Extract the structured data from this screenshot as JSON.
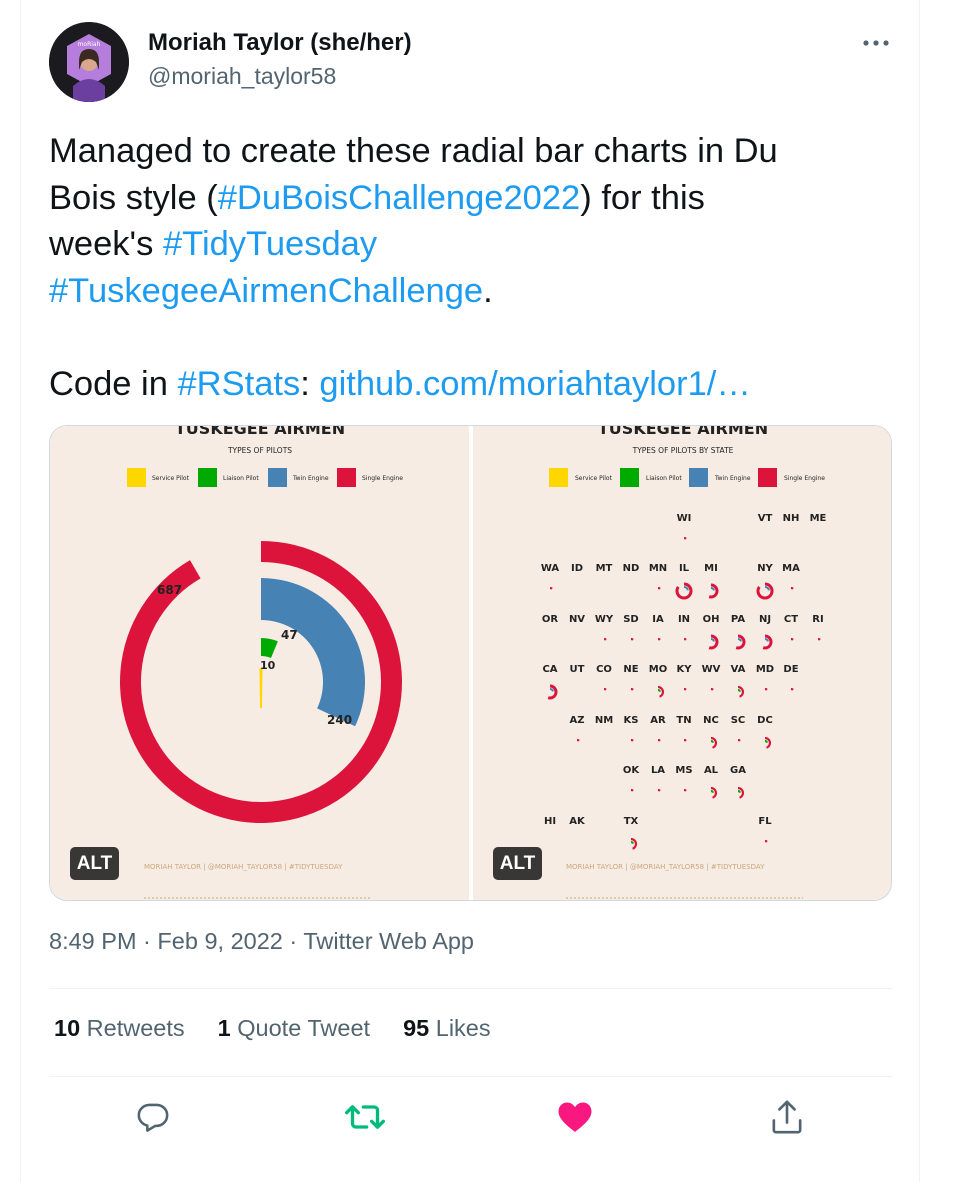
{
  "author": {
    "name": "Moriah Taylor (she/her)",
    "handle": "@moriah_taylor58",
    "avatar_label": "moRiah"
  },
  "tweet": {
    "line1": "Managed to create these radial bar charts in Du",
    "line2_pre": "Bois style (",
    "hashtag1": "#DuBoisChallenge2022",
    "line2_post": ") for this",
    "line3_pre": "week's ",
    "hashtag2": "#TidyTuesday",
    "hashtag3": "#TuskegeeAirmenChallenge",
    "line4_post": ".",
    "code_pre": "Code in ",
    "hashtag4": "#RStats",
    "code_colon": ": ",
    "link": "github.com/moriahtaylor1/…"
  },
  "media": {
    "left": {
      "title": "TUSKEGEE AIRMEN",
      "subtitle": "TYPES OF PILOTS",
      "footer": "MORIAH TAYLOR | @MORIAH_TAYLOR58 | #TIDYTUESDAY",
      "alt_label": "ALT"
    },
    "right": {
      "title": "TUSKEGEE AIRMEN",
      "subtitle": "TYPES OF PILOTS BY STATE",
      "footer": "MORIAH TAYLOR | @MORIAH_TAYLOR58 | #TIDYTUESDAY",
      "alt_label": "ALT"
    },
    "legend": [
      "Service Pilot",
      "Liaison Pilot",
      "Twin Engine",
      "Single Engine"
    ],
    "colors": {
      "service": "#ffd700",
      "liaison": "#00aa00",
      "twin": "#4682b4",
      "single": "#dc143c",
      "background": "#f7ece4"
    }
  },
  "chart_data": {
    "type": "radial-bar",
    "title": "TUSKEGEE AIRMEN",
    "subtitle": "TYPES OF PILOTS",
    "categories": [
      "Service Pilot",
      "Liaison Pilot",
      "Twin Engine",
      "Single Engine"
    ],
    "values": [
      10,
      47,
      240,
      687
    ],
    "labels": [
      "10",
      "47",
      "240",
      "687"
    ]
  },
  "states_grid": [
    {
      "rows": [
        [
          "WI"
        ],
        [
          "VT",
          "NH",
          "ME"
        ]
      ]
    },
    {
      "labels": [
        "WA",
        "ID",
        "MT",
        "ND",
        "MN",
        "IL",
        "MI",
        "NY",
        "MA"
      ]
    },
    {
      "labels": [
        "OR",
        "NV",
        "WY",
        "SD",
        "IA",
        "IN",
        "OH",
        "PA",
        "NJ",
        "CT",
        "RI"
      ]
    },
    {
      "labels": [
        "CA",
        "UT",
        "CO",
        "NE",
        "MO",
        "KY",
        "WV",
        "VA",
        "MD",
        "DE"
      ]
    },
    {
      "labels": [
        "AZ",
        "NM",
        "KS",
        "AR",
        "TN",
        "NC",
        "SC",
        "DC"
      ]
    },
    {
      "labels": [
        "OK",
        "LA",
        "MS",
        "AL",
        "GA"
      ]
    },
    {
      "labels": [
        "HI",
        "AK",
        "TX",
        "FL"
      ]
    }
  ],
  "meta": {
    "time": "8:49 PM",
    "sep1": " · ",
    "date": "Feb 9, 2022",
    "sep2": " · ",
    "source": "Twitter Web App"
  },
  "stats": {
    "retweets_count": "10",
    "retweets_label": "Retweets",
    "quotes_count": "1",
    "quotes_label": "Quote Tweet",
    "likes_count": "95",
    "likes_label": "Likes"
  },
  "actions": {
    "reply": "reply-icon",
    "retweet": "retweet-icon",
    "like": "heart-icon",
    "share": "share-icon",
    "retweet_color": "#00ba7c",
    "like_color": "#f91880"
  }
}
